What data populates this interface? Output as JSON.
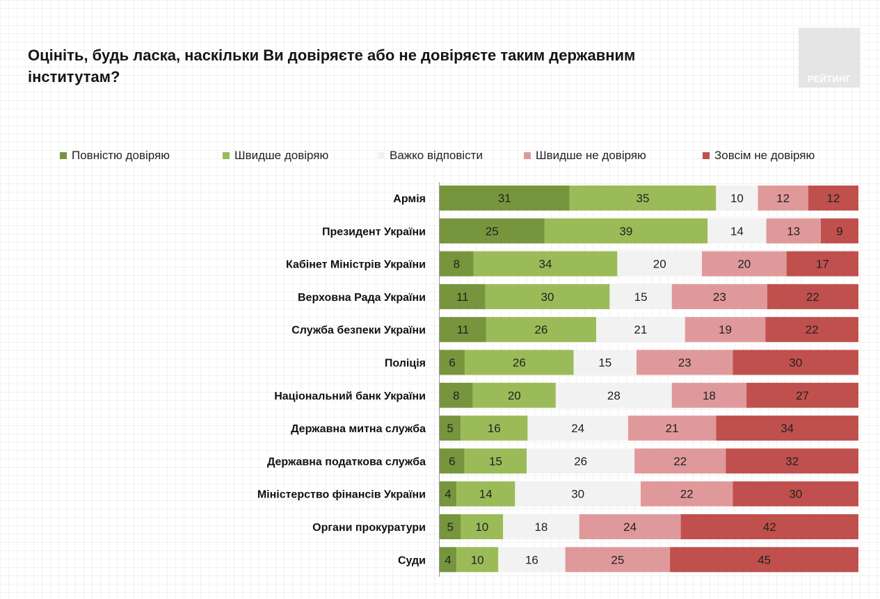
{
  "title": "Оцініть, будь ласка, наскільки Ви довіряєте або не довіряєте таким державним інститутам?",
  "logo": {
    "text": "РЕЙТИНГ"
  },
  "colors": {
    "full_trust": "#76953d",
    "rather_trust": "#9bbb59",
    "hard_to_say": "#f2f2f2",
    "rather_distrust": "#e0999b",
    "full_distrust": "#c0504d"
  },
  "chart_data": {
    "type": "bar",
    "orientation": "horizontal",
    "stacked": true,
    "title": "Оцініть, будь ласка, наскільки Ви довіряєте або не довіряєте таким державним інститутам?",
    "legend_position": "top",
    "categories": [
      "Армія",
      "Президент України",
      "Кабінет Міністрів України",
      "Верховна Рада України",
      "Служба безпеки України",
      "Поліція",
      "Національний банк України",
      "Державна митна служба",
      "Державна податкова служба",
      "Міністерство фінансів України",
      "Органи прокуратури",
      "Суди"
    ],
    "series": [
      {
        "name": "Повністю довіряю",
        "color": "#76953d",
        "values": [
          31,
          25,
          8,
          11,
          11,
          6,
          8,
          5,
          6,
          4,
          5,
          4
        ]
      },
      {
        "name": "Швидше довіряю",
        "color": "#9bbb59",
        "values": [
          35,
          39,
          34,
          30,
          26,
          26,
          20,
          16,
          15,
          14,
          10,
          10
        ]
      },
      {
        "name": "Важко відповісти",
        "color": "#f2f2f2",
        "values": [
          10,
          14,
          20,
          15,
          21,
          15,
          28,
          24,
          26,
          30,
          18,
          16
        ]
      },
      {
        "name": "Швидше не довіряю",
        "color": "#e0999b",
        "values": [
          12,
          13,
          20,
          23,
          19,
          23,
          18,
          21,
          22,
          22,
          24,
          25
        ]
      },
      {
        "name": "Зовсім не довіряю",
        "color": "#c0504d",
        "values": [
          12,
          9,
          17,
          22,
          22,
          30,
          27,
          34,
          32,
          30,
          42,
          45
        ]
      }
    ]
  }
}
